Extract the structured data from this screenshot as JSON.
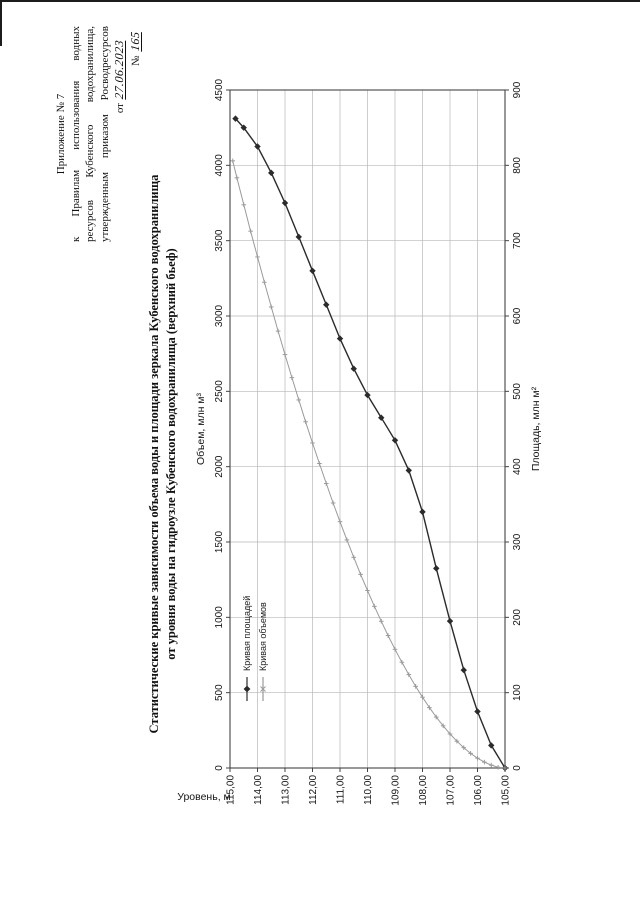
{
  "page": {
    "header": {
      "line1": "Приложение № 7",
      "line2": "к Правилам использования водных",
      "line3": "ресурсов Кубенского водохранилища,",
      "line4": "утвержденным приказом Росводресурсов",
      "line5_prefix": "от",
      "line5_date": "27.06.2023",
      "line6_prefix": "№",
      "line6_number": "165"
    },
    "title_line1": "Статистические кривые зависимости объема воды и площади зеркала Кубенского водохранилища",
    "title_line2": "от уровня воды на гидроузле Кубенского водохранилища (верхний бьеф)"
  },
  "chart_data": {
    "type": "line",
    "title": "Статистические кривые зависимости объема воды и площади зеркала Кубенского водохранилища от уровня воды на гидроузле Кубенского водохранилища (верхний бьеф)",
    "grid": true,
    "legend_position": "inside-left",
    "y_axis": {
      "label": "Уровень, м",
      "min": 105,
      "max": 115,
      "tick_step": 1,
      "tick_labels": [
        "115,00",
        "114,00",
        "113,00",
        "112,00",
        "111,00",
        "110,00",
        "109,00",
        "108,00",
        "107,00",
        "106,00",
        "105,00"
      ]
    },
    "x_axis_top": {
      "label": "Объем, млн м³",
      "min": 0,
      "max": 4500,
      "tick_step": 500,
      "tick_labels": [
        "0",
        "500",
        "1000",
        "1500",
        "2000",
        "2500",
        "3000",
        "3500",
        "4000",
        "4500"
      ]
    },
    "x_axis_bottom": {
      "label": "Площадь, млн м²",
      "min": 0,
      "max": 900,
      "tick_step": 100,
      "tick_labels": [
        "0",
        "100",
        "200",
        "300",
        "400",
        "500",
        "600",
        "700",
        "800",
        "900"
      ]
    },
    "series": [
      {
        "name": "Кривая площадей",
        "axis": "bottom",
        "marker": "diamond",
        "color": "#2b2b2b",
        "points": [
          [
            105,
            0
          ],
          [
            105.5,
            30
          ],
          [
            106,
            75
          ],
          [
            106.5,
            130
          ],
          [
            107,
            195
          ],
          [
            107.5,
            265
          ],
          [
            108,
            340
          ],
          [
            108.5,
            395
          ],
          [
            109,
            435
          ],
          [
            109.5,
            465
          ],
          [
            110,
            495
          ],
          [
            110.5,
            530
          ],
          [
            111,
            570
          ],
          [
            111.5,
            615
          ],
          [
            112,
            660
          ],
          [
            112.5,
            705
          ],
          [
            113,
            750
          ],
          [
            113.5,
            790
          ],
          [
            114,
            825
          ],
          [
            114.5,
            850
          ],
          [
            114.8,
            862
          ]
        ]
      },
      {
        "name": "Кривая объемов",
        "axis": "top",
        "marker": "cross",
        "color": "#9a9a9a",
        "points": [
          [
            105,
            0
          ],
          [
            105.25,
            5
          ],
          [
            105.5,
            19
          ],
          [
            105.75,
            39
          ],
          [
            106,
            65
          ],
          [
            106.25,
            97
          ],
          [
            106.5,
            135
          ],
          [
            106.75,
            178
          ],
          [
            107,
            226
          ],
          [
            107.25,
            280
          ],
          [
            107.5,
            338
          ],
          [
            107.75,
            401
          ],
          [
            108,
            470
          ],
          [
            108.25,
            542
          ],
          [
            108.5,
            620
          ],
          [
            108.75,
            702
          ],
          [
            109,
            788
          ],
          [
            109.25,
            879
          ],
          [
            109.5,
            974
          ],
          [
            109.75,
            1073
          ],
          [
            110,
            1178
          ],
          [
            110.25,
            1285
          ],
          [
            110.5,
            1398
          ],
          [
            110.75,
            1514
          ],
          [
            111,
            1635
          ],
          [
            111.25,
            1759
          ],
          [
            111.5,
            1888
          ],
          [
            111.75,
            2021
          ],
          [
            112,
            2157
          ],
          [
            112.25,
            2298
          ],
          [
            112.5,
            2443
          ],
          [
            112.75,
            2591
          ],
          [
            113,
            2744
          ],
          [
            113.25,
            2900
          ],
          [
            113.5,
            3060
          ],
          [
            113.75,
            3224
          ],
          [
            114,
            3392
          ],
          [
            114.25,
            3563
          ],
          [
            114.5,
            3738
          ],
          [
            114.75,
            3917
          ],
          [
            114.9,
            4030
          ]
        ]
      }
    ]
  }
}
